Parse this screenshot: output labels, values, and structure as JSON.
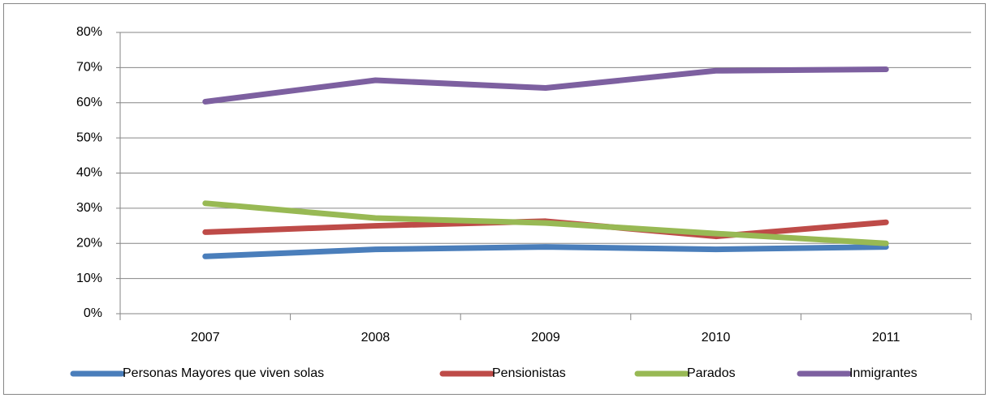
{
  "chart_data": {
    "type": "line",
    "categories": [
      "2007",
      "2008",
      "2009",
      "2010",
      "2011"
    ],
    "series": [
      {
        "name": "Personas Mayores que viven solas",
        "color": "#4a7ebb",
        "values": [
          16.3,
          18.3,
          19,
          18.3,
          19
        ]
      },
      {
        "name": "Pensionistas",
        "color": "#be4b48",
        "values": [
          23.2,
          25,
          26.3,
          22,
          26
        ]
      },
      {
        "name": "Parados",
        "color": "#98b954",
        "values": [
          31.4,
          27.2,
          25.8,
          22.8,
          20
        ]
      },
      {
        "name": "Inmigrantes",
        "color": "#7d60a0",
        "values": [
          60.3,
          66.4,
          64.2,
          69.1,
          69.5
        ]
      }
    ],
    "ylim": [
      0,
      80
    ],
    "yticks": [
      {
        "value": 0,
        "label": "0%"
      },
      {
        "value": 10,
        "label": "10%"
      },
      {
        "value": 20,
        "label": "20%"
      },
      {
        "value": 30,
        "label": "30%"
      },
      {
        "value": 40,
        "label": "40%"
      },
      {
        "value": 50,
        "label": "50%"
      },
      {
        "value": 60,
        "label": "60%"
      },
      {
        "value": 70,
        "label": "70%"
      },
      {
        "value": 80,
        "label": "80%"
      }
    ],
    "grid": true,
    "legend": "bottom"
  }
}
